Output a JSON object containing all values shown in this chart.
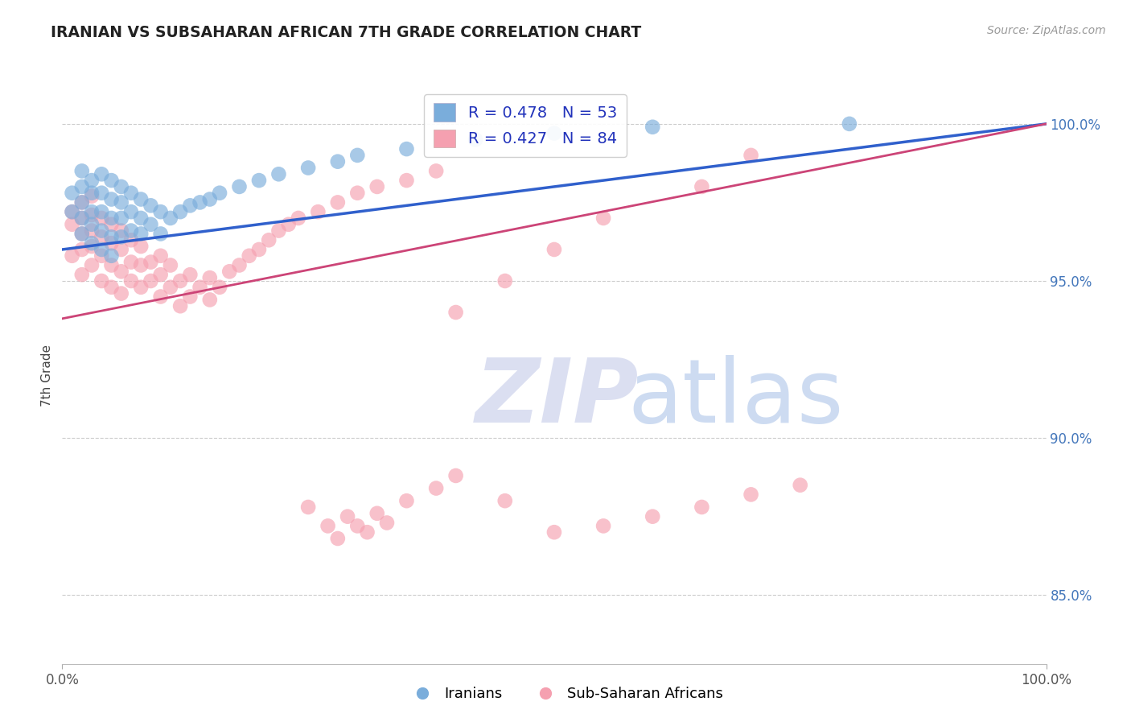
{
  "title": "IRANIAN VS SUBSAHARAN AFRICAN 7TH GRADE CORRELATION CHART",
  "ylabel": "7th Grade",
  "source": "Source: ZipAtlas.com",
  "xlim": [
    0.0,
    1.0
  ],
  "ylim": [
    0.828,
    1.012
  ],
  "yticks": [
    0.85,
    0.9,
    0.95,
    1.0
  ],
  "ytick_labels": [
    "85.0%",
    "90.0%",
    "95.0%",
    "100.0%"
  ],
  "iranian_R": 0.478,
  "iranian_N": 53,
  "subsaharan_R": 0.427,
  "subsaharan_N": 84,
  "iranian_color": "#7AADDB",
  "subsaharan_color": "#F5A0B0",
  "iranian_line_color": "#3060CC",
  "subsaharan_line_color": "#CC4477",
  "watermark_zip_color": "#D8DCF0",
  "watermark_atlas_color": "#C8D8F0",
  "iranians_label": "Iranians",
  "subsaharan_label": "Sub-Saharan Africans",
  "iranian_x": [
    0.01,
    0.01,
    0.02,
    0.02,
    0.02,
    0.02,
    0.02,
    0.03,
    0.03,
    0.03,
    0.03,
    0.03,
    0.04,
    0.04,
    0.04,
    0.04,
    0.04,
    0.05,
    0.05,
    0.05,
    0.05,
    0.05,
    0.06,
    0.06,
    0.06,
    0.06,
    0.07,
    0.07,
    0.07,
    0.08,
    0.08,
    0.08,
    0.09,
    0.09,
    0.1,
    0.1,
    0.11,
    0.12,
    0.13,
    0.14,
    0.15,
    0.16,
    0.18,
    0.2,
    0.22,
    0.25,
    0.28,
    0.3,
    0.35,
    0.42,
    0.5,
    0.6,
    0.8
  ],
  "iranian_y": [
    0.972,
    0.978,
    0.965,
    0.97,
    0.975,
    0.98,
    0.985,
    0.962,
    0.968,
    0.972,
    0.978,
    0.982,
    0.96,
    0.966,
    0.972,
    0.978,
    0.984,
    0.958,
    0.964,
    0.97,
    0.976,
    0.982,
    0.964,
    0.97,
    0.975,
    0.98,
    0.966,
    0.972,
    0.978,
    0.965,
    0.97,
    0.976,
    0.968,
    0.974,
    0.965,
    0.972,
    0.97,
    0.972,
    0.974,
    0.975,
    0.976,
    0.978,
    0.98,
    0.982,
    0.984,
    0.986,
    0.988,
    0.99,
    0.992,
    0.995,
    0.997,
    0.999,
    1.0
  ],
  "subsaharan_x": [
    0.01,
    0.01,
    0.01,
    0.02,
    0.02,
    0.02,
    0.02,
    0.02,
    0.03,
    0.03,
    0.03,
    0.03,
    0.03,
    0.04,
    0.04,
    0.04,
    0.04,
    0.05,
    0.05,
    0.05,
    0.05,
    0.06,
    0.06,
    0.06,
    0.06,
    0.07,
    0.07,
    0.07,
    0.08,
    0.08,
    0.08,
    0.09,
    0.09,
    0.1,
    0.1,
    0.1,
    0.11,
    0.11,
    0.12,
    0.12,
    0.13,
    0.13,
    0.14,
    0.15,
    0.15,
    0.16,
    0.17,
    0.18,
    0.19,
    0.2,
    0.21,
    0.22,
    0.23,
    0.24,
    0.26,
    0.28,
    0.3,
    0.32,
    0.35,
    0.38,
    0.4,
    0.45,
    0.5,
    0.55,
    0.65,
    0.7,
    0.25,
    0.27,
    0.29,
    0.31,
    0.33,
    0.28,
    0.3,
    0.32,
    0.35,
    0.38,
    0.4,
    0.45,
    0.5,
    0.55,
    0.6,
    0.65,
    0.7,
    0.75
  ],
  "subsaharan_y": [
    0.968,
    0.958,
    0.972,
    0.96,
    0.965,
    0.952,
    0.97,
    0.975,
    0.955,
    0.961,
    0.966,
    0.971,
    0.977,
    0.95,
    0.958,
    0.964,
    0.97,
    0.948,
    0.955,
    0.962,
    0.968,
    0.946,
    0.953,
    0.96,
    0.966,
    0.95,
    0.956,
    0.963,
    0.948,
    0.955,
    0.961,
    0.95,
    0.956,
    0.945,
    0.952,
    0.958,
    0.948,
    0.955,
    0.942,
    0.95,
    0.945,
    0.952,
    0.948,
    0.944,
    0.951,
    0.948,
    0.953,
    0.955,
    0.958,
    0.96,
    0.963,
    0.966,
    0.968,
    0.97,
    0.972,
    0.975,
    0.978,
    0.98,
    0.982,
    0.985,
    0.94,
    0.95,
    0.96,
    0.97,
    0.98,
    0.99,
    0.878,
    0.872,
    0.875,
    0.87,
    0.873,
    0.868,
    0.872,
    0.876,
    0.88,
    0.884,
    0.888,
    0.88,
    0.87,
    0.872,
    0.875,
    0.878,
    0.882,
    0.885
  ]
}
